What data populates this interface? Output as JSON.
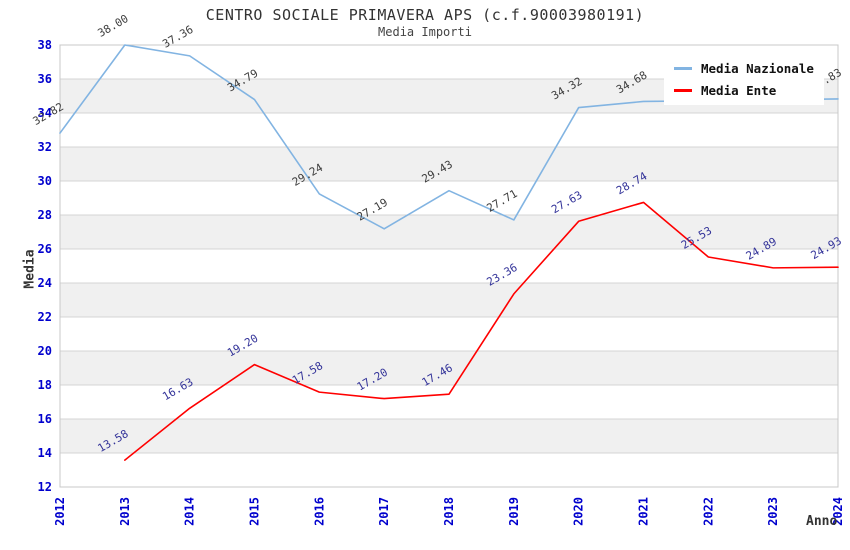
{
  "chart_data": {
    "type": "line",
    "title": "CENTRO SOCIALE PRIMAVERA APS (c.f.90003980191)",
    "subtitle": "Media Importi",
    "xlabel": "Anno",
    "ylabel": "Media",
    "x_years": [
      2012,
      2013,
      2014,
      2015,
      2016,
      2017,
      2018,
      2019,
      2020,
      2021,
      2022,
      2023,
      2024
    ],
    "ylim": [
      12,
      38
    ],
    "ytick_step": 2,
    "grid": true,
    "stripes": true,
    "legend_position": "top-right",
    "series": [
      {
        "name": "Media Nazionale",
        "color": "#82b4e2",
        "label_color": "#3d3d3d",
        "x": [
          2012,
          2013,
          2014,
          2015,
          2016,
          2017,
          2018,
          2019,
          2020,
          2021,
          2022,
          2023,
          2024
        ],
        "values": [
          32.82,
          38.0,
          37.36,
          34.79,
          29.24,
          27.19,
          29.43,
          27.71,
          34.32,
          34.68,
          34.72,
          34.78,
          34.83
        ],
        "labels": [
          "32.82",
          "38.00",
          "37.36",
          "34.79",
          "29.24",
          "27.19",
          "29.43",
          "27.71",
          "34.32",
          "34.68",
          null,
          null,
          "34.83"
        ]
      },
      {
        "name": "Media Ente",
        "color": "#ff0000",
        "label_color": "#333399",
        "x": [
          2013,
          2014,
          2015,
          2016,
          2017,
          2018,
          2019,
          2020,
          2021,
          2022,
          2023,
          2024
        ],
        "values": [
          13.58,
          16.63,
          19.2,
          17.58,
          17.2,
          17.46,
          23.36,
          27.63,
          28.74,
          25.53,
          24.89,
          24.93
        ],
        "labels": [
          "13.58",
          "16.63",
          "19.20",
          "17.58",
          "17.20",
          "17.46",
          "23.36",
          "27.63",
          "28.74",
          "25.53",
          "24.89",
          "24.93"
        ]
      }
    ],
    "appearance": {
      "tick_label_color": "#0000cd",
      "gridline_color": "#d4d4d4",
      "stripe_color": "#f0f0f0",
      "plot_border_color": "#c8c8c8",
      "background_color": "#ffffff"
    }
  }
}
